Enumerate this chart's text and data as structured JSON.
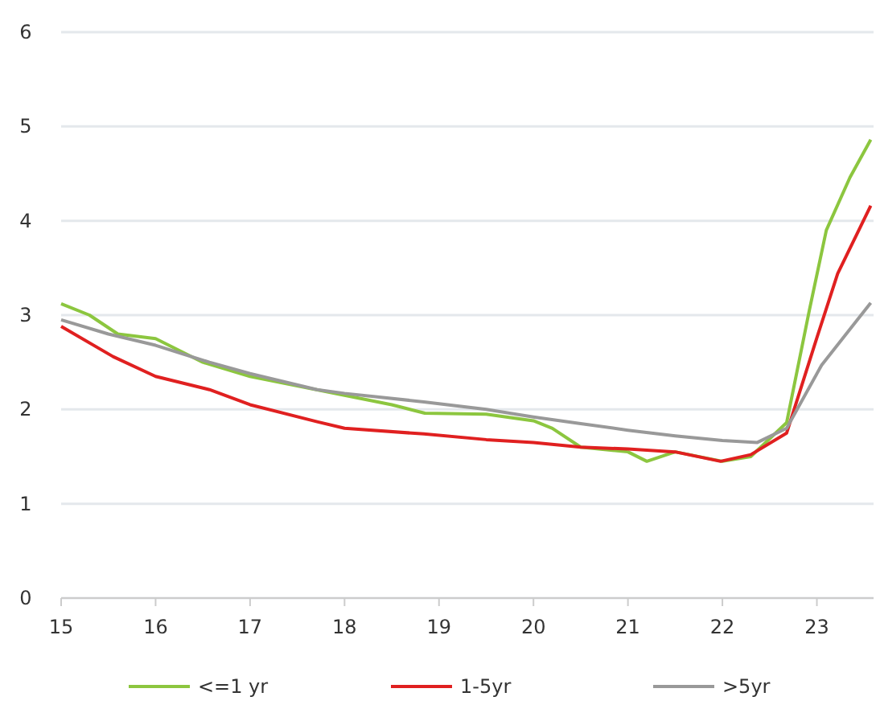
{
  "chart_data": {
    "type": "line",
    "xlim": [
      15,
      23.6
    ],
    "xticks": [
      15,
      16,
      17,
      18,
      19,
      20,
      21,
      22,
      23
    ],
    "ylim": [
      0,
      6
    ],
    "yticks": [
      0,
      1,
      2,
      3,
      4,
      5,
      6
    ],
    "grid": "y",
    "legend": "bottom",
    "line_style": "solid",
    "marker": "none",
    "series": [
      {
        "name": "<=1 yr",
        "color": "#8cc63f",
        "x": [
          15,
          15.3,
          15.6,
          16,
          16.5,
          17,
          17.5,
          18,
          18.5,
          18.85,
          19.5,
          20,
          20.2,
          20.5,
          21,
          21.2,
          21.5,
          22,
          22.3,
          22.68,
          22.92,
          23.1,
          23.35,
          23.57
        ],
        "values": [
          3.12,
          3.0,
          2.8,
          2.75,
          2.5,
          2.35,
          2.25,
          2.15,
          2.05,
          1.96,
          1.95,
          1.88,
          1.8,
          1.6,
          1.55,
          1.45,
          1.55,
          1.45,
          1.5,
          1.86,
          3.05,
          3.9,
          4.46,
          4.86
        ]
      },
      {
        "name": "1-5yr",
        "color": "#e02020",
        "x": [
          15,
          15.55,
          16,
          16.57,
          17,
          17.71,
          18,
          18.84,
          19.5,
          20,
          20.5,
          21,
          21.5,
          21.98,
          22.3,
          22.68,
          23.0,
          23.22,
          23.57
        ],
        "values": [
          2.88,
          2.56,
          2.35,
          2.21,
          2.05,
          1.87,
          1.8,
          1.74,
          1.68,
          1.65,
          1.6,
          1.58,
          1.55,
          1.45,
          1.52,
          1.75,
          2.76,
          3.44,
          4.16
        ]
      },
      {
        "name": ">5yr",
        "color": "#999999",
        "x": [
          15,
          15.5,
          16,
          16.57,
          17,
          17.71,
          18,
          18.84,
          19.5,
          20,
          20.5,
          21,
          21.5,
          22,
          22.37,
          22.68,
          23.05,
          23.57
        ],
        "values": [
          2.95,
          2.8,
          2.68,
          2.5,
          2.38,
          2.21,
          2.17,
          2.08,
          2.0,
          1.92,
          1.85,
          1.78,
          1.72,
          1.67,
          1.65,
          1.8,
          2.47,
          3.13
        ]
      }
    ]
  }
}
